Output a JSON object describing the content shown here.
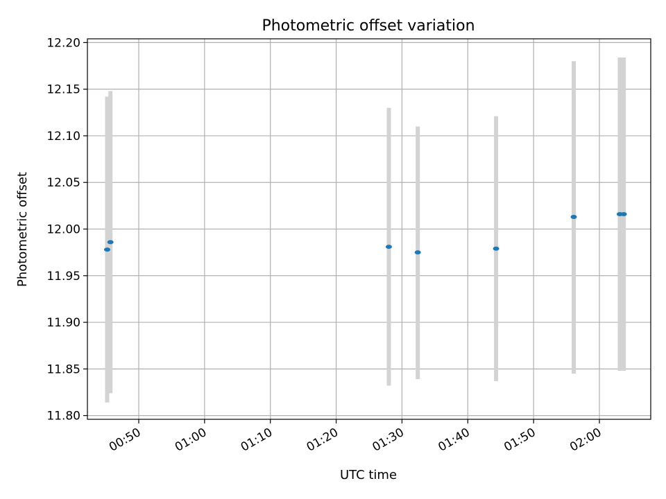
{
  "chart_data": {
    "type": "scatter",
    "title": "Photometric offset variation",
    "xlabel": "UTC time",
    "ylabel": "Photometric offset",
    "x_unit": "minutes after midnight UTC",
    "xlim": [
      42.2,
      127.8
    ],
    "ylim": [
      11.796,
      12.204
    ],
    "x_ticks": [
      {
        "value": 50,
        "label": "00:50"
      },
      {
        "value": 60,
        "label": "01:00"
      },
      {
        "value": 70,
        "label": "01:10"
      },
      {
        "value": 80,
        "label": "01:20"
      },
      {
        "value": 90,
        "label": "01:30"
      },
      {
        "value": 100,
        "label": "01:40"
      },
      {
        "value": 110,
        "label": "01:50"
      },
      {
        "value": 120,
        "label": "02:00"
      }
    ],
    "y_ticks": [
      {
        "value": 11.8,
        "label": "11.80"
      },
      {
        "value": 11.85,
        "label": "11.85"
      },
      {
        "value": 11.9,
        "label": "11.90"
      },
      {
        "value": 11.95,
        "label": "11.95"
      },
      {
        "value": 12.0,
        "label": "12.00"
      },
      {
        "value": 12.05,
        "label": "12.05"
      },
      {
        "value": 12.1,
        "label": "12.10"
      },
      {
        "value": 12.15,
        "label": "12.15"
      },
      {
        "value": 12.2,
        "label": "12.20"
      }
    ],
    "grid": true,
    "points": [
      {
        "x": 45.2,
        "y": 11.978,
        "y_low": 11.814,
        "y_high": 12.142
      },
      {
        "x": 45.7,
        "y": 11.986,
        "y_low": 11.824,
        "y_high": 12.148
      },
      {
        "x": 88.0,
        "y": 11.981,
        "y_low": 11.832,
        "y_high": 12.13
      },
      {
        "x": 92.4,
        "y": 11.975,
        "y_low": 11.839,
        "y_high": 12.11
      },
      {
        "x": 104.3,
        "y": 11.979,
        "y_low": 11.837,
        "y_high": 12.121
      },
      {
        "x": 116.1,
        "y": 12.013,
        "y_low": 11.845,
        "y_high": 12.18
      },
      {
        "x": 123.1,
        "y": 12.016,
        "y_low": 11.848,
        "y_high": 12.184
      },
      {
        "x": 123.7,
        "y": 12.016,
        "y_low": 11.848,
        "y_high": 12.184
      }
    ],
    "colors": {
      "marker": "#1f77b4",
      "errorbar": "#d3d3d3",
      "grid": "#b0b0b0",
      "axes": "#000000"
    }
  }
}
